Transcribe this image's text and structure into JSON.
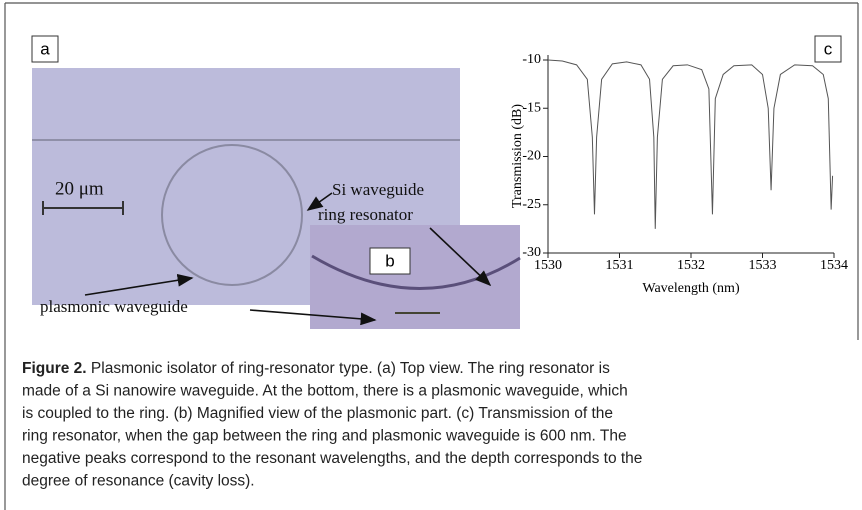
{
  "panels": {
    "a": {
      "label": "a",
      "scale_bar": "20 μm",
      "annotation_ring": [
        "Si waveguide",
        "ring resonator"
      ],
      "annotation_plasmonic": "plasmonic waveguide"
    },
    "b": {
      "label": "b"
    }
  },
  "chart_data": {
    "type": "line",
    "panel_label": "c",
    "x_label": "Wavelength (nm)",
    "y_label": "Transmission (dB)",
    "x": [
      1530.0,
      1530.2,
      1530.4,
      1530.55,
      1530.62,
      1530.65,
      1530.68,
      1530.75,
      1530.9,
      1531.1,
      1531.3,
      1531.42,
      1531.48,
      1531.5,
      1531.53,
      1531.6,
      1531.75,
      1531.95,
      1532.15,
      1532.25,
      1532.3,
      1532.34,
      1532.45,
      1532.6,
      1532.85,
      1533.0,
      1533.08,
      1533.12,
      1533.16,
      1533.25,
      1533.45,
      1533.7,
      1533.85,
      1533.92,
      1533.96,
      1533.98
    ],
    "series": [
      {
        "color": "#555555",
        "values": [
          -10.0,
          -10.1,
          -10.5,
          -12,
          -18,
          -26,
          -18,
          -12,
          -10.4,
          -10.2,
          -10.5,
          -12,
          -18,
          -27.5,
          -18,
          -12,
          -10.6,
          -10.5,
          -11,
          -13,
          -26,
          -14,
          -11.5,
          -10.6,
          -10.5,
          -11.5,
          -15,
          -23.5,
          -15,
          -11.5,
          -10.5,
          -10.6,
          -11.5,
          -14,
          -25.5,
          -22
        ]
      }
    ],
    "xlim": [
      1530,
      1534
    ],
    "ylim": [
      -30,
      -10
    ],
    "xticks": [
      1530,
      1531,
      1532,
      1533,
      1534
    ],
    "yticks": [
      -10,
      -15,
      -20,
      -25,
      -30
    ]
  },
  "caption": {
    "label": "Figure 2.",
    "lines": [
      " Plasmonic isolator of ring-resonator type. (a) Top view. The ring resonator is",
      "made of a Si nanowire waveguide. At the bottom, there is a plasmonic waveguide, which",
      "is coupled to the ring. (b) Magnified view of the plasmonic part. (c) Transmission of the",
      "ring resonator, when the gap between the ring and plasmonic waveguide is 600 nm. The",
      "negative peaks correspond to the resonant wavelengths, and the depth corresponds to the",
      "degree of resonance (cavity loss)."
    ]
  }
}
